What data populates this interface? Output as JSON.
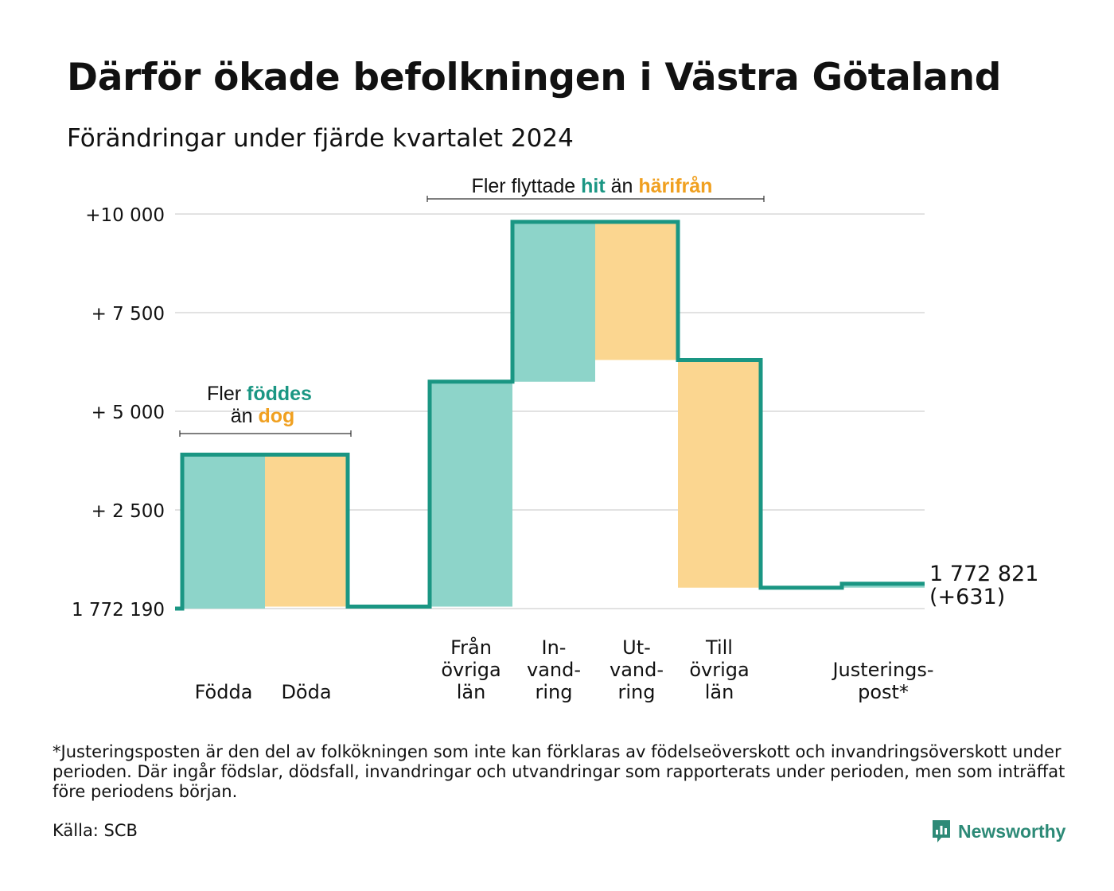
{
  "title": "Därför ökade befolkningen i Västra Götaland",
  "subtitle": "Förändringar under fjärde kvartalet 2024",
  "annotations": {
    "births_group": {
      "line1_prefix": "Fler ",
      "line1_highlight": "föddes",
      "line2_prefix": "än ",
      "line2_highlight": "dog"
    },
    "migration_group": {
      "prefix": "Fler flyttade ",
      "highlight1": "hit",
      "middle": " än ",
      "highlight2": "härifrån"
    }
  },
  "end_label": {
    "value": "1 772 821",
    "change": "(+631)"
  },
  "footnote": "*Justeringsposten är den del av folkökningen som inte kan förklaras av födelseöverskott och invandringsöverskott under perioden. Där ingår födslar, dödsfall, invandringar och utvandringar som rapporterats under perioden, men som inträffat före periodens början.",
  "source": "Källa: SCB",
  "brand": {
    "name": "Newsworthy",
    "logo_icon": "bar-chart-logo-icon"
  },
  "colors": {
    "increase": "#8dd4c9",
    "decrease": "#fbd690",
    "line": "#1a9683",
    "grid": "#e2e2e2",
    "highlight_increase": "#1a9683",
    "highlight_decrease": "#f0a020"
  },
  "chart_data": {
    "type": "waterfall",
    "title": "Därför ökade befolkningen i Västra Götaland",
    "subtitle": "Förändringar under fjärde kvartalet 2024",
    "start_value": 1772190,
    "end_value": 1772821,
    "net_change": 631,
    "ylim": [
      0,
      10000
    ],
    "y_ticks": [
      {
        "value": 0,
        "label": "1 772 190"
      },
      {
        "value": 2500,
        "label": "+ 2 500"
      },
      {
        "value": 5000,
        "label": "+ 5 000"
      },
      {
        "value": 7500,
        "label": "+ 7 500"
      },
      {
        "value": 10000,
        "label": "+10 000"
      }
    ],
    "grid": true,
    "steps": [
      {
        "label": [
          "Födda"
        ],
        "kind": "increase",
        "from": 0,
        "to": 3900
      },
      {
        "label": [
          "Döda"
        ],
        "kind": "decrease",
        "from": 3900,
        "to": 50
      },
      {
        "label": [
          "Från",
          "övriga",
          "län"
        ],
        "kind": "increase",
        "from": 50,
        "to": 5750
      },
      {
        "label": [
          "In-",
          "vand-",
          "ring"
        ],
        "kind": "increase",
        "from": 5750,
        "to": 9800
      },
      {
        "label": [
          "Ut-",
          "vand-",
          "ring"
        ],
        "kind": "decrease",
        "from": 9800,
        "to": 6300
      },
      {
        "label": [
          "Till",
          "övriga",
          "län"
        ],
        "kind": "decrease",
        "from": 6300,
        "to": 530
      },
      {
        "label": [
          "Justerings-",
          "post*"
        ],
        "kind": "increase",
        "from": 530,
        "to": 631
      }
    ]
  }
}
